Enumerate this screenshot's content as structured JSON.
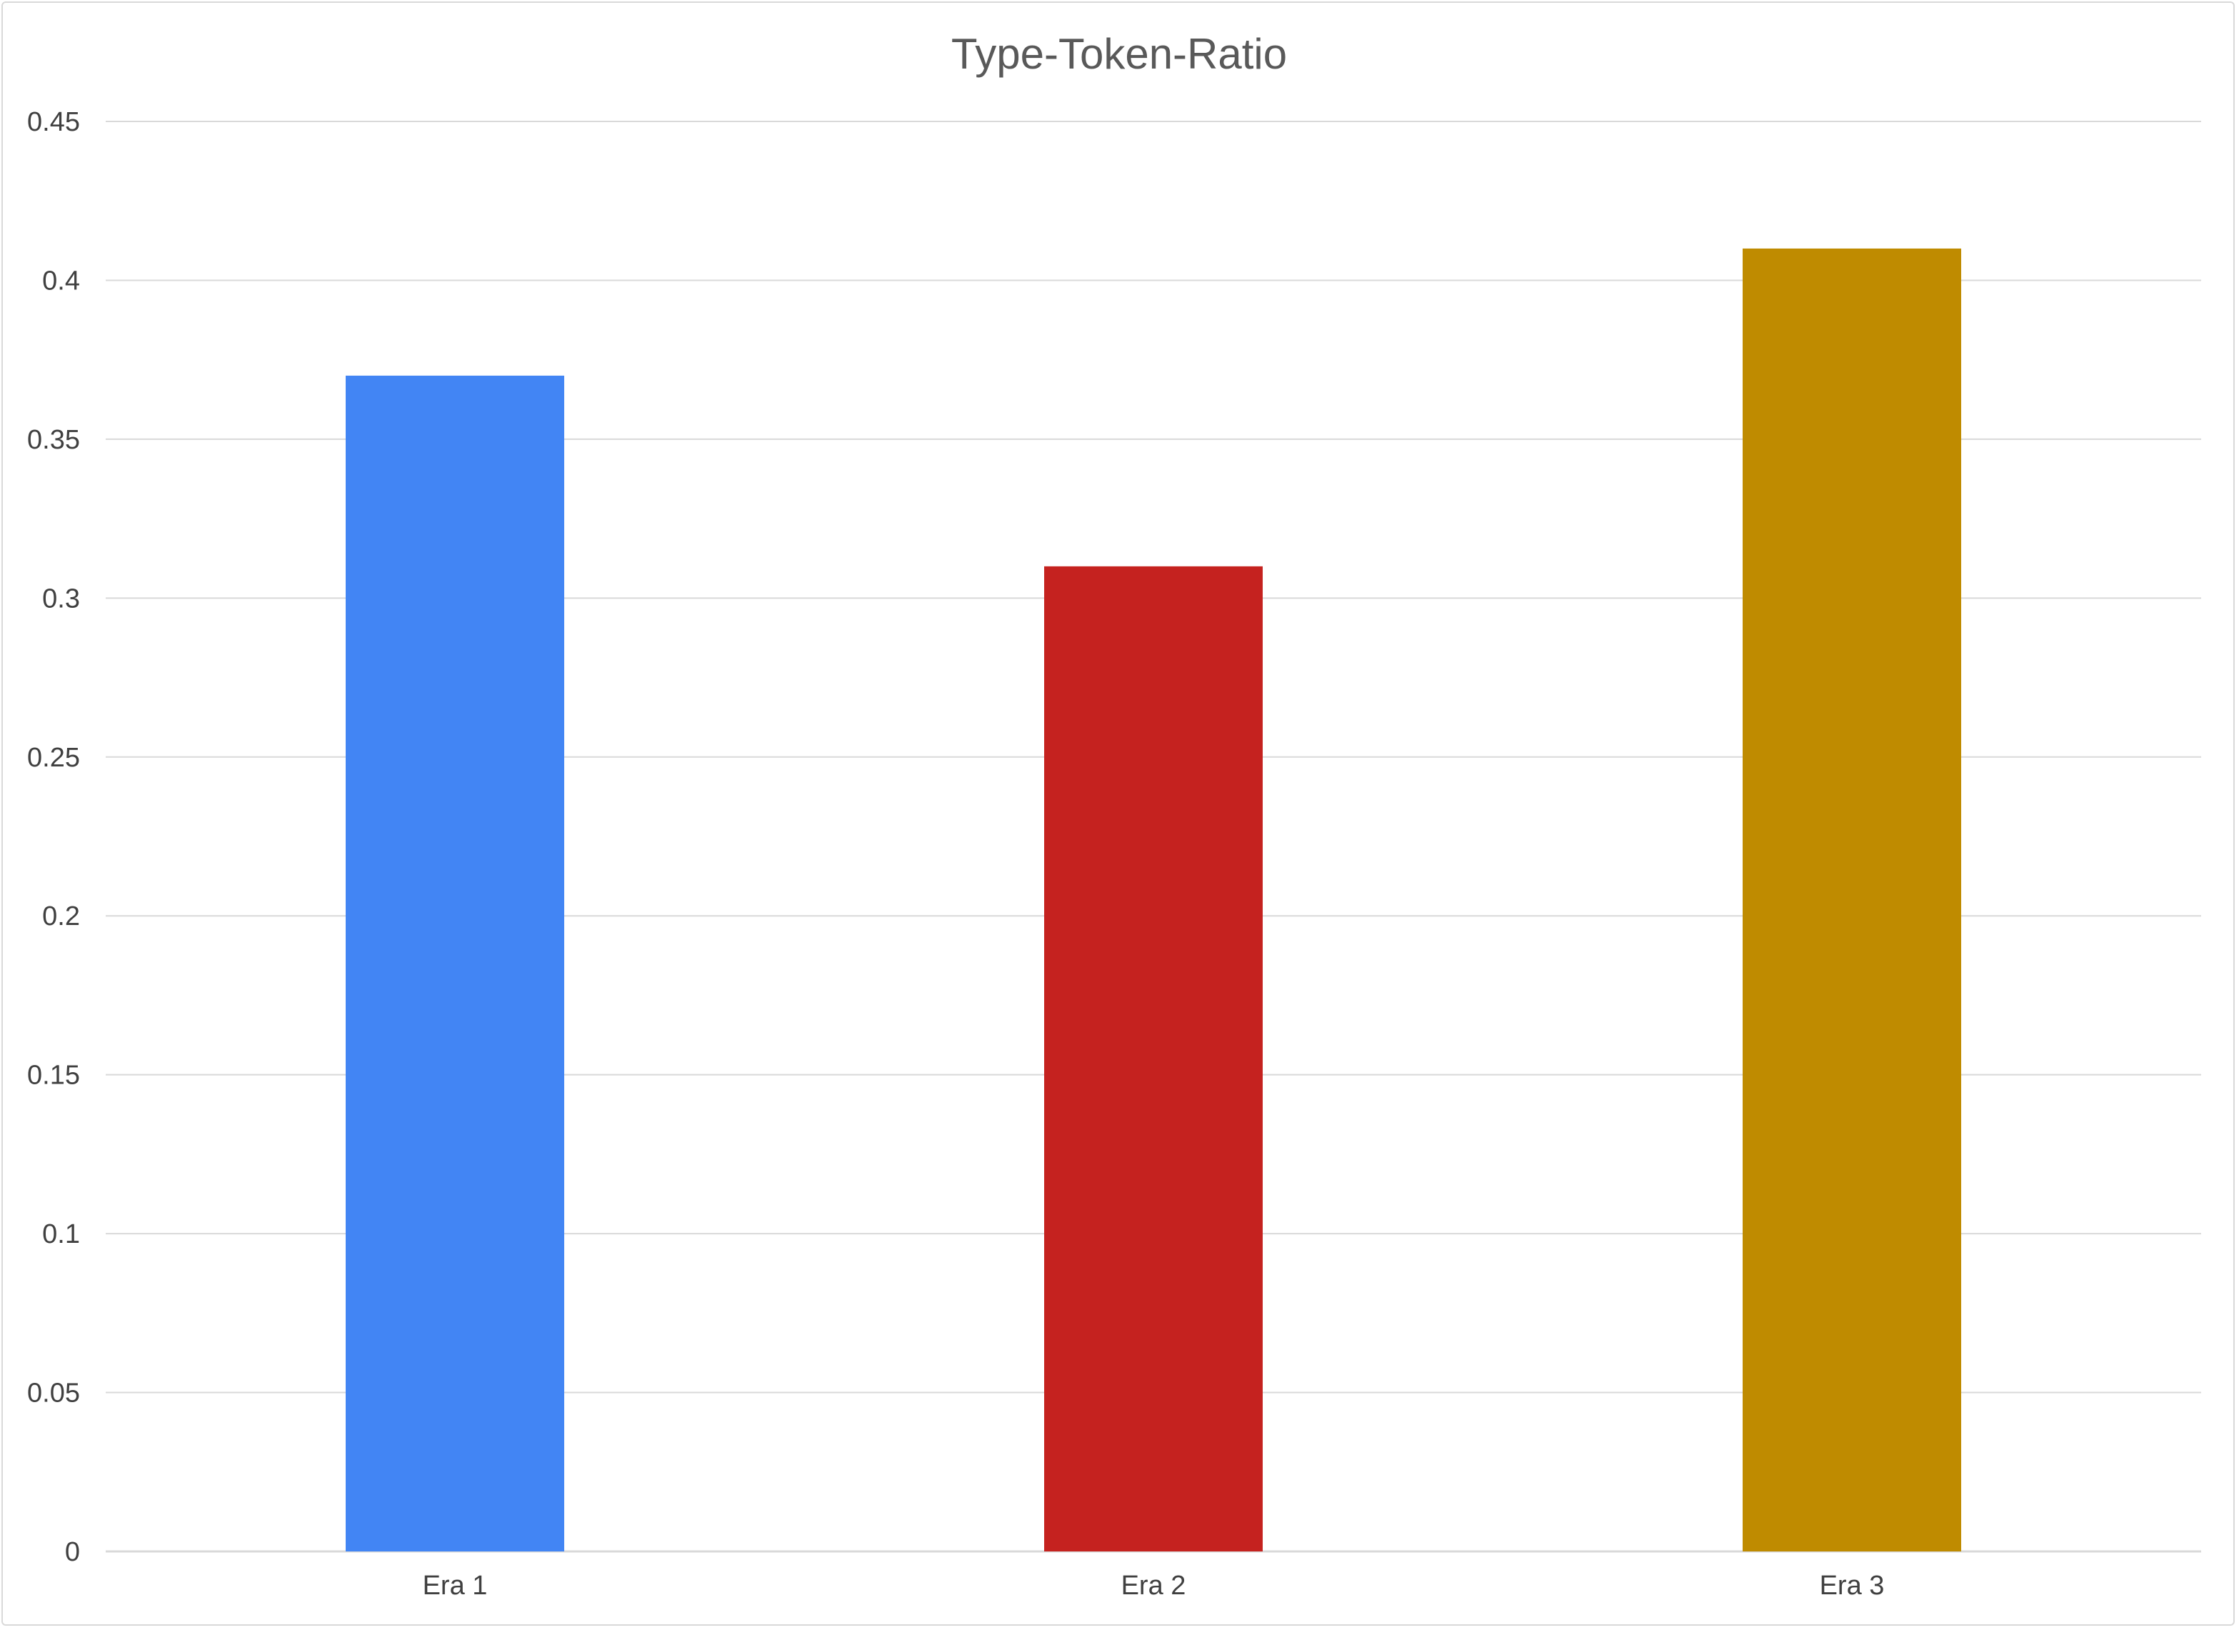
{
  "chart_data": {
    "type": "bar",
    "title": "Type-Token-Ratio",
    "xlabel": "",
    "ylabel": "",
    "categories": [
      "Era 1",
      "Era 2",
      "Era 3"
    ],
    "values": [
      0.37,
      0.31,
      0.41
    ],
    "bar_colors": [
      "#4285f4",
      "#c5221f",
      "#bf8b00"
    ],
    "ylim": [
      0,
      0.45
    ],
    "y_ticks": [
      "0",
      "0.05",
      "0.1",
      "0.15",
      "0.2",
      "0.25",
      "0.3",
      "0.35",
      "0.4",
      "0.45"
    ],
    "y_tick_values": [
      0,
      0.05,
      0.1,
      0.15,
      0.2,
      0.25,
      0.3,
      0.35,
      0.4,
      0.45
    ],
    "grid": true,
    "legend": "none"
  },
  "colors": {
    "gridline": "#d9d9d9",
    "axis_text": "#404040",
    "title_text": "#595959",
    "background": "#ffffff"
  }
}
